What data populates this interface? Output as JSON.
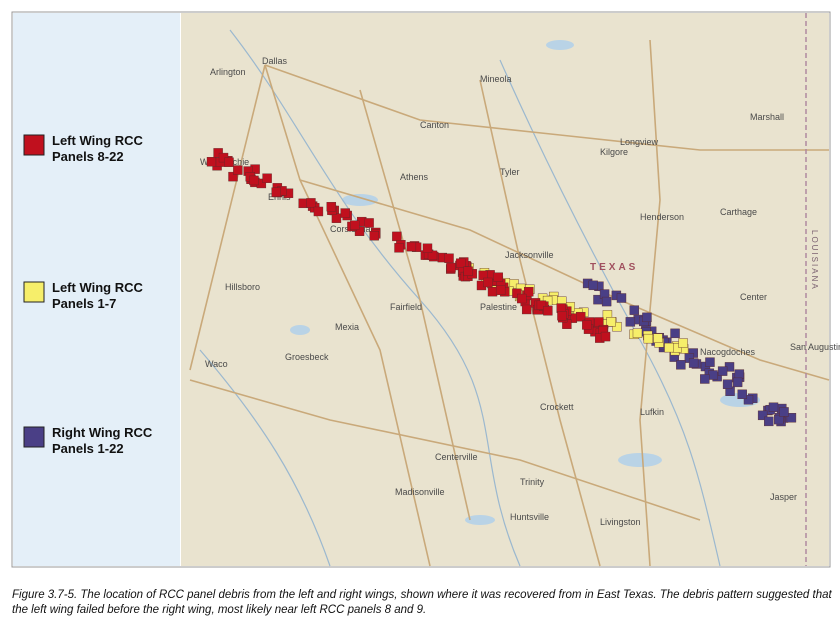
{
  "legend": {
    "items": [
      {
        "line1": "Left Wing RCC",
        "line2": "Panels 8-22",
        "color": "#c0101e"
      },
      {
        "line1": "Left Wing RCC",
        "line2": "Panels 1-7",
        "color": "#f6ee6a"
      },
      {
        "line1": "Right Wing RCC",
        "line2": "Panels 1-22",
        "color": "#4a3f86"
      }
    ]
  },
  "map_labels": [
    "Dallas",
    "Arlington",
    "Waxahachie",
    "Ennis",
    "Corsicana",
    "Athens",
    "Canton",
    "Mineola",
    "Tyler",
    "Longview",
    "Marshall",
    "Kilgore",
    "Henderson",
    "Carthage",
    "Jacksonville",
    "Palestine",
    "TEXAS",
    "Nacogdoches",
    "San Augustine",
    "Center",
    "Lufkin",
    "Crockett",
    "Waco",
    "Hillsboro",
    "Mexia",
    "Groesbeck",
    "Fairfield",
    "Centerville",
    "Madisonville",
    "Huntsville",
    "Trinity",
    "Livingston",
    "Jasper",
    "LOUISIANA"
  ],
  "caption": "Figure 3.7-5. The location of RCC panel debris from the left and right wings, shown where it was recovered from in East Texas. The debris pattern suggested that the left wing failed before the right wing, most likely near left RCC panels 8 and 9."
}
